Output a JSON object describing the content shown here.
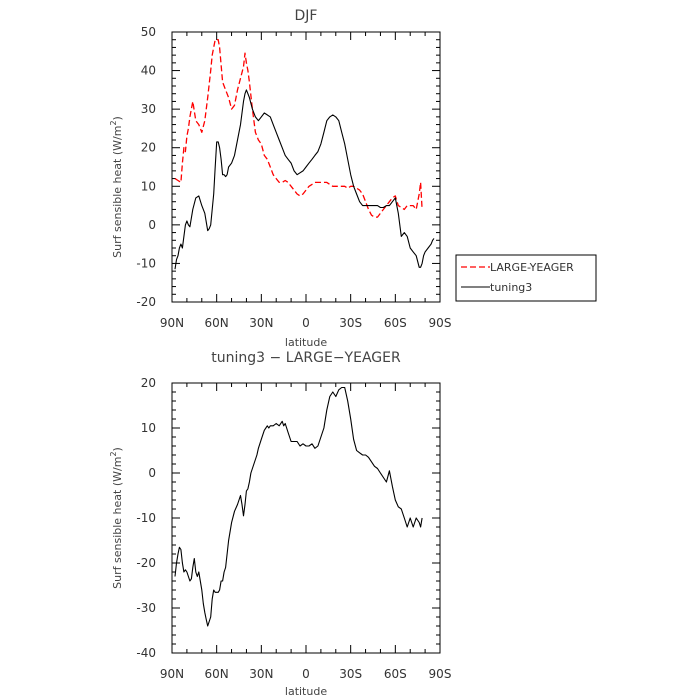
{
  "chart_data": [
    {
      "type": "line",
      "title": "DJF",
      "xlabel": "latitude",
      "ylabel": "Surf sensible heat (W/m",
      "ylabel_superscript": "2",
      "ylabel_close": ")",
      "xlim": [
        -90,
        90
      ],
      "ylim": [
        -20,
        50
      ],
      "x_ticks": [
        -90,
        -60,
        -30,
        0,
        30,
        60,
        90
      ],
      "x_tick_labels": [
        "90N",
        "60N",
        "30N",
        "0",
        "30S",
        "60S",
        "90S"
      ],
      "y_ticks": [
        -20,
        -10,
        0,
        10,
        20,
        30,
        40,
        50
      ],
      "y_tick_labels": [
        "-20",
        "-10",
        "0",
        "10",
        "20",
        "30",
        "40",
        "50"
      ],
      "legend": {
        "placement": "right",
        "entries": [
          "LARGE-YEAGER",
          "tuning3"
        ]
      },
      "series": [
        {
          "name": "LARGE-YEAGER",
          "color": "#ff0000",
          "style": "dashed",
          "x": [
            -88,
            -86,
            -84,
            -83,
            -82,
            -81,
            -80,
            -79,
            -78,
            -76,
            -74,
            -72,
            -70,
            -68,
            -66,
            -64,
            -63,
            -62,
            -61,
            -60,
            -59,
            -58,
            -56,
            -54,
            -52,
            -50,
            -48,
            -46,
            -44,
            -42,
            -41,
            -40,
            -39,
            -38,
            -36,
            -34,
            -32,
            -30,
            -28,
            -26,
            -24,
            -22,
            -20,
            -18,
            -16,
            -14,
            -12,
            -10,
            -8,
            -6,
            -4,
            -2,
            0,
            2,
            4,
            6,
            8,
            10,
            12,
            14,
            16,
            18,
            20,
            22,
            24,
            26,
            28,
            30,
            32,
            34,
            36,
            38,
            40,
            42,
            44,
            46,
            48,
            50,
            52,
            54,
            56,
            58,
            60,
            62,
            64,
            66,
            68,
            70,
            72,
            74,
            76,
            77,
            78
          ],
          "y": [
            12,
            11.5,
            11,
            16,
            20,
            19,
            23,
            25,
            28,
            32,
            27,
            26,
            24,
            27,
            33,
            40,
            44,
            46,
            48,
            48,
            48,
            46,
            37,
            35,
            33,
            30,
            31,
            35,
            38,
            41,
            44.5,
            42,
            40,
            37,
            30,
            24,
            22,
            21,
            18,
            17,
            15,
            13,
            12,
            11,
            11,
            11.5,
            11,
            10,
            9,
            8,
            7.5,
            8,
            9,
            10,
            10.5,
            11,
            11,
            11,
            11,
            11,
            10.5,
            10,
            10,
            10,
            10,
            10,
            9.5,
            10,
            10,
            9.5,
            9,
            8,
            6,
            4,
            2.5,
            2,
            2,
            3,
            4,
            5,
            6,
            7,
            7.5,
            5,
            4.5,
            4,
            5,
            5,
            5,
            4,
            8,
            11,
            4
          ]
        },
        {
          "name": "tuning3",
          "color": "#000000",
          "style": "solid",
          "x": [
            -88,
            -87,
            -86,
            -85,
            -84,
            -83,
            -82,
            -81,
            -80,
            -79,
            -78,
            -76,
            -74,
            -72,
            -70,
            -68,
            -66,
            -65,
            -64,
            -62,
            -61,
            -60,
            -59,
            -58,
            -57,
            -56,
            -55,
            -54,
            -53,
            -52,
            -50,
            -48,
            -46,
            -44,
            -42,
            -41,
            -40,
            -39,
            -38,
            -36,
            -34,
            -32,
            -30,
            -28,
            -26,
            -24,
            -22,
            -20,
            -18,
            -16,
            -14,
            -12,
            -10,
            -8,
            -6,
            -4,
            -2,
            0,
            2,
            4,
            6,
            8,
            10,
            12,
            14,
            16,
            18,
            20,
            22,
            24,
            26,
            28,
            30,
            32,
            34,
            36,
            38,
            40,
            42,
            44,
            46,
            48,
            50,
            52,
            54,
            56,
            58,
            60,
            62,
            64,
            66,
            68,
            70,
            72,
            74,
            76,
            77,
            78,
            79,
            80,
            82,
            84,
            85,
            86
          ],
          "y": [
            -11.5,
            -9,
            -8,
            -6,
            -5,
            -6,
            -3,
            0,
            1,
            0,
            -0.5,
            4,
            7,
            7.5,
            5,
            3,
            -1.5,
            -1,
            0,
            8,
            15,
            21.5,
            21.5,
            20,
            17,
            13,
            13,
            12.5,
            13,
            15,
            16,
            18,
            22,
            26,
            32,
            34,
            35,
            34,
            33,
            30,
            28,
            27,
            28,
            29,
            28.5,
            28,
            26,
            24,
            22,
            20,
            18,
            17,
            16,
            14,
            13,
            13.5,
            14,
            15,
            16,
            17,
            18,
            19,
            21,
            24,
            27,
            28,
            28.5,
            28,
            27,
            24,
            21,
            17,
            13,
            10,
            8,
            6,
            5,
            5,
            5,
            5,
            5,
            5,
            4.5,
            4.5,
            5,
            5,
            6,
            7,
            3,
            -3,
            -2,
            -3,
            -6,
            -7,
            -8,
            -11,
            -11,
            -10,
            -8,
            -7,
            -6,
            -5,
            -4,
            -3.5
          ]
        }
      ]
    },
    {
      "type": "line",
      "title": "tuning3 − LARGE−YEAGER",
      "xlabel": "latitude",
      "ylabel": "Surf sensible heat (W/m",
      "ylabel_superscript": "2",
      "ylabel_close": ")",
      "xlim": [
        -90,
        90
      ],
      "ylim": [
        -40,
        20
      ],
      "x_ticks": [
        -90,
        -60,
        -30,
        0,
        30,
        60,
        90
      ],
      "x_tick_labels": [
        "90N",
        "60N",
        "30N",
        "0",
        "30S",
        "60S",
        "90S"
      ],
      "y_ticks": [
        -40,
        -30,
        -20,
        -10,
        0,
        10,
        20
      ],
      "y_tick_labels": [
        "-40",
        "-30",
        "-20",
        "-10",
        "0",
        "10",
        "20"
      ],
      "series": [
        {
          "color": "#000000",
          "style": "solid",
          "x": [
            -88,
            -87,
            -86,
            -85,
            -84,
            -83,
            -82,
            -81,
            -80,
            -79,
            -78,
            -77,
            -76,
            -75,
            -74,
            -73,
            -72,
            -71,
            -70,
            -69,
            -68,
            -67,
            -66,
            -65,
            -64,
            -63,
            -62,
            -61,
            -60,
            -59,
            -58,
            -57,
            -56,
            -55,
            -54,
            -53,
            -52,
            -50,
            -48,
            -46,
            -45,
            -44,
            -43,
            -42,
            -41,
            -40,
            -39,
            -38,
            -37,
            -36,
            -35,
            -34,
            -33,
            -32,
            -30,
            -28,
            -26,
            -25,
            -24,
            -22,
            -20,
            -18,
            -16,
            -15,
            -14,
            -12,
            -10,
            -8,
            -6,
            -4,
            -2,
            0,
            2,
            4,
            6,
            8,
            10,
            12,
            14,
            16,
            18,
            20,
            22,
            24,
            26,
            28,
            30,
            32,
            34,
            36,
            38,
            40,
            42,
            44,
            46,
            48,
            50,
            52,
            54,
            56,
            58,
            60,
            62,
            64,
            66,
            68,
            70,
            72,
            74,
            76,
            77,
            78
          ],
          "y": [
            -23,
            -20,
            -18,
            -16.5,
            -17,
            -20,
            -22,
            -21.5,
            -22,
            -23,
            -24,
            -23.5,
            -21,
            -19,
            -22,
            -23,
            -22,
            -24,
            -26,
            -29,
            -31,
            -32.5,
            -34,
            -33,
            -32,
            -28,
            -26,
            -26.5,
            -26.5,
            -26.5,
            -26,
            -24,
            -24,
            -22,
            -21,
            -18,
            -15,
            -11,
            -8.5,
            -7,
            -6,
            -5,
            -7,
            -9.5,
            -7,
            -4,
            -3.5,
            -2,
            0,
            1,
            2,
            3,
            4,
            5.5,
            7.5,
            9.5,
            10.5,
            10,
            10.5,
            10.5,
            11,
            10.5,
            11.5,
            10.5,
            11,
            9,
            7,
            7,
            7,
            6,
            6.5,
            6,
            6,
            6.5,
            5.5,
            6,
            8,
            10,
            14,
            17,
            18,
            17,
            18.5,
            19,
            19,
            16,
            12,
            7.5,
            5,
            4.5,
            4,
            4,
            3.5,
            2.5,
            1.5,
            1,
            0,
            -1,
            -2,
            0.5,
            -3,
            -6,
            -7.5,
            -8,
            -10,
            -12,
            -10,
            -12,
            -10,
            -11,
            -12,
            -10
          ]
        }
      ]
    }
  ]
}
